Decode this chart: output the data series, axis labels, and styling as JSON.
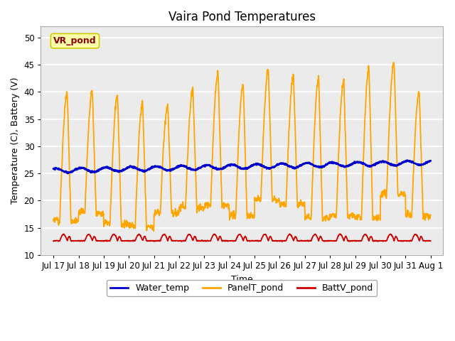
{
  "title": "Vaira Pond Temperatures",
  "xlabel": "Time",
  "ylabel": "Temperature (C), Battery (V)",
  "ylim": [
    10,
    52
  ],
  "yticks": [
    10,
    15,
    20,
    25,
    30,
    35,
    40,
    45,
    50
  ],
  "x_tick_labels": [
    "Jul 17",
    "Jul 18",
    "Jul 19",
    "Jul 20",
    "Jul 21",
    "Jul 22",
    "Jul 23",
    "Jul 24",
    "Jul 25",
    "Jul 26",
    "Jul 27",
    "Jul 28",
    "Jul 29",
    "Jul 30",
    "Jul 31",
    "Aug 1"
  ],
  "x_tick_positions": [
    0.5,
    1.5,
    2.5,
    3.5,
    4.5,
    5.5,
    6.5,
    7.5,
    8.5,
    9.5,
    10.5,
    11.5,
    12.5,
    13.5,
    14.5,
    15.5
  ],
  "xlim": [
    0,
    16
  ],
  "water_color": "#0000cc",
  "panel_color": "#ffa500",
  "batt_color": "#cc0000",
  "water_lw": 1.8,
  "panel_lw": 1.3,
  "batt_lw": 1.3,
  "grid_color": "#ffffff",
  "bg_color": "#ebebeb",
  "annotation_text": "VR_pond",
  "annotation_color": "#8b0000",
  "annotation_bg": "#ffffaa",
  "title_fontsize": 12,
  "label_fontsize": 9,
  "tick_fontsize": 8.5,
  "legend_fontsize": 9
}
